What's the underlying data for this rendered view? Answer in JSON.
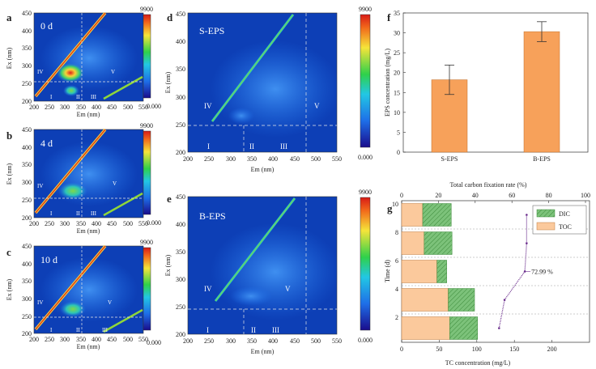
{
  "colors": {
    "map_bg": "#0d3fb6",
    "bar_fill": "#f7a15a",
    "toc_fill": "#fbc99c",
    "dic_fill": "#7cc27a",
    "rate_line": "#6a2c8c"
  },
  "colorbar": {
    "max": "9900",
    "min": "0.000"
  },
  "eem_axes": {
    "em_label": "Em (nm)",
    "ex_label": "Ex (nm)",
    "em_ticks_small": [
      "200",
      "250",
      "300",
      "350",
      "400",
      "450",
      "500",
      "550"
    ],
    "ex_ticks_small": [
      "200",
      "250",
      "300",
      "350",
      "400",
      "450"
    ],
    "em_ticks_large": [
      "200",
      "250",
      "300",
      "350",
      "400",
      "450",
      "500",
      "550"
    ],
    "ex_ticks_large": [
      "200",
      "250",
      "300",
      "350",
      "400",
      "450"
    ]
  },
  "panels": {
    "a": {
      "letter": "a",
      "title": "0 d",
      "regions": [
        "I",
        "II",
        "III",
        "IV",
        "V"
      ]
    },
    "b": {
      "letter": "b",
      "title": "4 d",
      "regions": [
        "I",
        "II",
        "III",
        "IV",
        "V"
      ]
    },
    "c": {
      "letter": "c",
      "title": "10 d",
      "regions": [
        "I",
        "II",
        "III",
        "IV",
        "V"
      ]
    },
    "d": {
      "letter": "d",
      "title": "S-EPS",
      "regions": [
        "I",
        "II",
        "III",
        "IV",
        "V"
      ]
    },
    "e": {
      "letter": "e",
      "title": "B-EPS",
      "regions": [
        "I",
        "II",
        "III",
        "IV",
        "V"
      ]
    },
    "f": {
      "letter": "f"
    },
    "g": {
      "letter": "g"
    }
  },
  "chart_data": [
    {
      "type": "bar",
      "categories": [
        "S-EPS",
        "B-EPS"
      ],
      "values": [
        18.2,
        30.3
      ],
      "errors": [
        3.7,
        2.5
      ],
      "ylabel": "EPS concentration (mg/L)",
      "ylim": [
        0,
        35
      ],
      "yticks": [
        "0",
        "5",
        "10",
        "15",
        "20",
        "25",
        "30",
        "35"
      ]
    },
    {
      "type": "bar",
      "orientation": "horizontal-stacked",
      "categories": [
        "10",
        "8",
        "6",
        "4",
        "2"
      ],
      "series": [
        {
          "name": "TOC",
          "values": [
            28,
            30,
            47,
            62,
            64
          ]
        },
        {
          "name": "DIC",
          "values": [
            38,
            37,
            13,
            35,
            37
          ]
        }
      ],
      "rate_line": {
        "values": [
          68,
          68,
          67,
          56,
          53
        ],
        "annotation": "72.99 %"
      },
      "xlabel": "TC concentration (mg/L)",
      "xlim": [
        0,
        250
      ],
      "xticks": [
        "0",
        "50",
        "100",
        "150",
        "200"
      ],
      "ylabel": "Time (d)",
      "top_xlabel": "Total carbon  fixation rate (%)",
      "top_xticks": [
        "0",
        "20",
        "40",
        "60",
        "80",
        "100"
      ],
      "legend": "top-right"
    }
  ]
}
